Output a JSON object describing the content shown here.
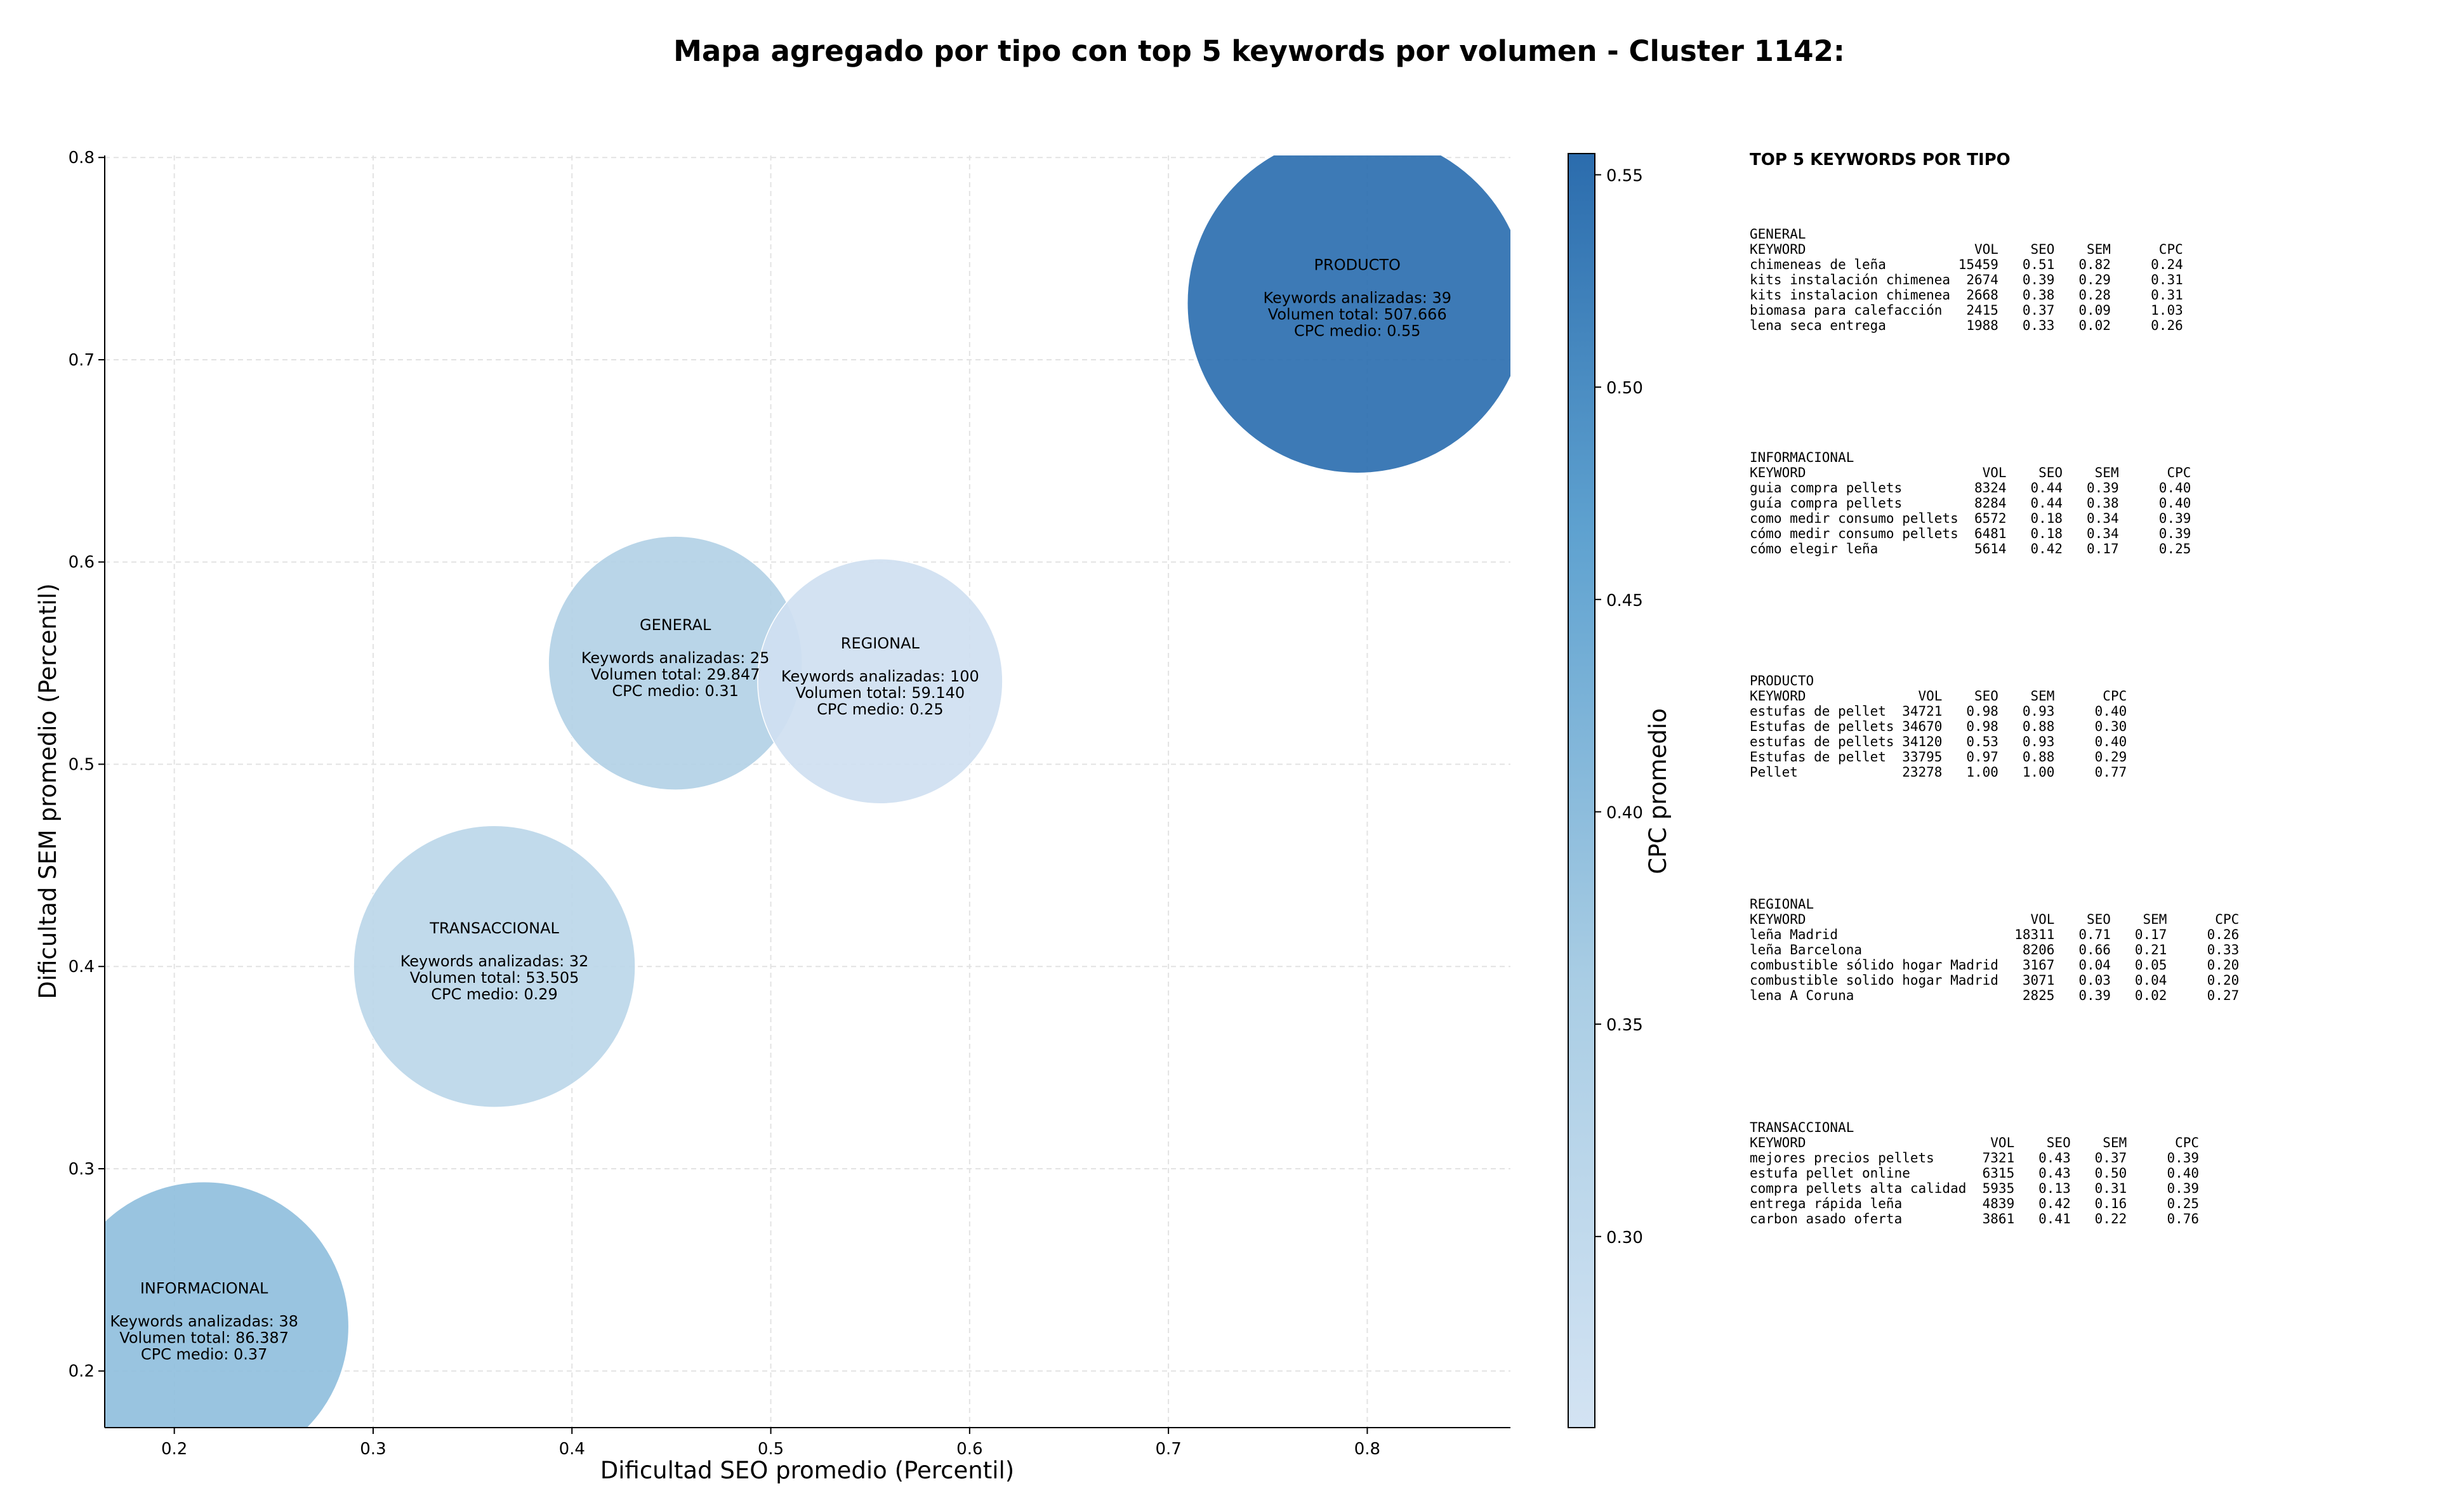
{
  "chart_data": {
    "type": "scatter",
    "title": "Mapa agregado por tipo con top 5 keywords por volumen - Cluster 1142:",
    "xlabel": "Dificultad SEO promedio (Percentil)",
    "ylabel": "Dificultad SEM promedio (Percentil)",
    "xlim": [
      0.165,
      0.872
    ],
    "ylim": [
      0.172,
      0.801
    ],
    "xticks": [
      "0.2",
      "0.3",
      "0.4",
      "0.5",
      "0.6",
      "0.7",
      "0.8"
    ],
    "yticks": [
      "0.2",
      "0.3",
      "0.4",
      "0.5",
      "0.6",
      "0.7",
      "0.8"
    ],
    "grid": true,
    "colorbar": {
      "label": "CPC promedio",
      "range": [
        0.255,
        0.555
      ],
      "ticks": [
        "0.30",
        "0.35",
        "0.40",
        "0.45",
        "0.50",
        "0.55"
      ],
      "color_low": "#cfe0f1",
      "color_high": "#2e6fae"
    },
    "points": [
      {
        "name": "PRODUCTO",
        "x": 0.795,
        "y": 0.728,
        "cpc": 0.55,
        "color": "#2c6fb0",
        "line1": "Keywords analizadas: 39",
        "line2": "Volumen total: 507.666",
        "line3": "CPC medio: 0.55"
      },
      {
        "name": "GENERAL",
        "x": 0.452,
        "y": 0.55,
        "cpc": 0.31,
        "color": "#b3d1e6",
        "line1": "Keywords analizadas: 25",
        "line2": "Volumen total: 29.847",
        "line3": "CPC medio: 0.31"
      },
      {
        "name": "REGIONAL",
        "x": 0.555,
        "y": 0.541,
        "cpc": 0.25,
        "color": "#cfe0f1",
        "line1": "Keywords analizadas: 100",
        "line2": "Volumen total: 59.140",
        "line3": "CPC medio: 0.25"
      },
      {
        "name": "TRANSACCIONAL",
        "x": 0.361,
        "y": 0.4,
        "cpc": 0.29,
        "color": "#bcd7e9",
        "line1": "Keywords analizadas: 32",
        "line2": "Volumen total: 53.505",
        "line3": "CPC medio: 0.29"
      },
      {
        "name": "INFORMACIONAL",
        "x": 0.215,
        "y": 0.222,
        "cpc": 0.37,
        "color": "#90bfdd",
        "line1": "Keywords analizadas: 38",
        "line2": "Volumen total: 86.387",
        "line3": "CPC medio: 0.37"
      }
    ]
  },
  "panel": {
    "title": "TOP 5 KEYWORDS POR TIPO",
    "groups": [
      {
        "name": "GENERAL",
        "lines": [
          "KEYWORD                     VOL    SEO    SEM      CPC",
          "chimeneas de leña         15459   0.51   0.82     0.24",
          "kits instalación chimenea  2674   0.39   0.29     0.31",
          "kits instalacion chimenea  2668   0.38   0.28     0.31",
          "biomasa para calefacción   2415   0.37   0.09     1.03",
          "lena seca entrega          1988   0.33   0.02     0.26"
        ]
      },
      {
        "name": "INFORMACIONAL",
        "lines": [
          "KEYWORD                      VOL    SEO    SEM      CPC",
          "guia compra pellets         8324   0.44   0.39     0.40",
          "guía compra pellets         8284   0.44   0.38     0.40",
          "como medir consumo pellets  6572   0.18   0.34     0.39",
          "cómo medir consumo pellets  6481   0.18   0.34     0.39",
          "cómo elegir leña            5614   0.42   0.17     0.25"
        ]
      },
      {
        "name": "PRODUCTO",
        "lines": [
          "KEYWORD              VOL    SEO    SEM      CPC",
          "estufas de pellet  34721   0.98   0.93     0.40",
          "Estufas de pellets 34670   0.98   0.88     0.30",
          "estufas de pellets 34120   0.53   0.93     0.40",
          "Estufas de pellet  33795   0.97   0.88     0.29",
          "Pellet             23278   1.00   1.00     0.77"
        ]
      },
      {
        "name": "REGIONAL",
        "lines": [
          "KEYWORD                            VOL    SEO    SEM      CPC",
          "leña Madrid                      18311   0.71   0.17     0.26",
          "leña Barcelona                    8206   0.66   0.21     0.33",
          "combustible sólido hogar Madrid   3167   0.04   0.05     0.20",
          "combustible solido hogar Madrid   3071   0.03   0.04     0.20",
          "lena A Coruna                     2825   0.39   0.02     0.27"
        ]
      },
      {
        "name": "TRANSACCIONAL",
        "lines": [
          "KEYWORD                       VOL    SEO    SEM      CPC",
          "mejores precios pellets      7321   0.43   0.37     0.39",
          "estufa pellet online         6315   0.43   0.50     0.40",
          "compra pellets alta calidad  5935   0.13   0.31     0.39",
          "entrega rápida leña          4839   0.42   0.16     0.25",
          "carbon asado oferta          3861   0.41   0.22     0.76"
        ]
      }
    ]
  }
}
